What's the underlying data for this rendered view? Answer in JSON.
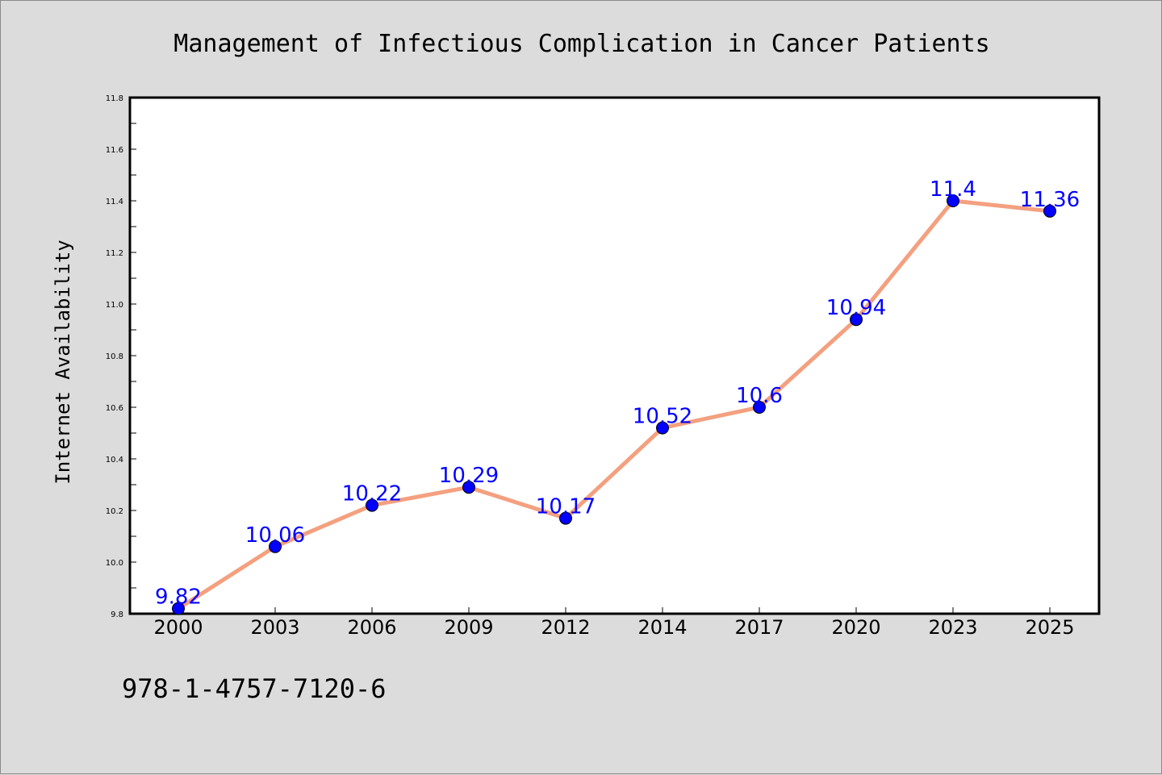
{
  "chart_data": {
    "type": "line",
    "title": "Management of Infectious Complication in Cancer Patients",
    "ylabel": "Internet Availability",
    "xlabel": "",
    "categories": [
      "2000",
      "2003",
      "2006",
      "2009",
      "2012",
      "2014",
      "2017",
      "2020",
      "2023",
      "2025"
    ],
    "series": [
      {
        "values": [
          9.82,
          10.06,
          10.22,
          10.29,
          10.17,
          10.52,
          10.6,
          10.94,
          11.4,
          11.36
        ]
      }
    ],
    "data_labels": [
      "9.82",
      "10.06",
      "10.22",
      "10.29",
      "10.17",
      "10.52",
      "10.6",
      "10.94",
      "11.4",
      "11.36"
    ],
    "ylim": [
      9.8,
      11.8
    ],
    "yticks": [
      "9.8",
      "10.0",
      "10.2",
      "10.4",
      "10.6",
      "10.8",
      "11.0",
      "11.2",
      "11.4",
      "11.6",
      "11.8"
    ],
    "grid": false,
    "line_color": "#f4a07f",
    "marker_color": "#0000ff",
    "label_color": "#0000ff"
  },
  "footer": {
    "isbn": "978-1-4757-7120-6"
  }
}
